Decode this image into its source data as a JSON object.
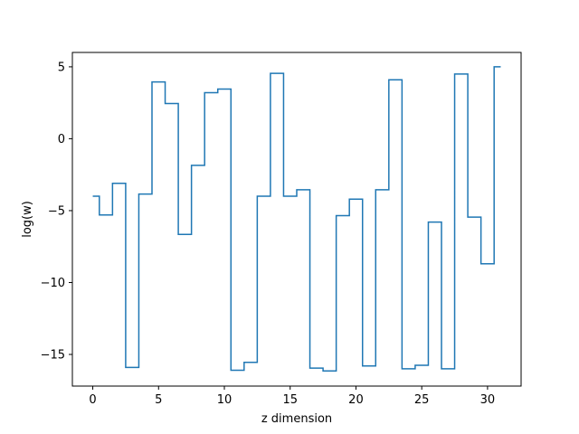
{
  "chart_data": {
    "type": "line",
    "step": "mid",
    "xlabel": "z dimension",
    "ylabel": "log(w)",
    "xlim": [
      -1.55,
      32.55
    ],
    "ylim": [
      -17.2,
      6.0
    ],
    "xticks": [
      0,
      5,
      10,
      15,
      20,
      25,
      30
    ],
    "yticks": [
      5,
      0,
      -5,
      -10,
      -15
    ],
    "ytick_labels": [
      "5",
      "0",
      "−5",
      "−10",
      "−15"
    ],
    "grid": false,
    "color": "#1f77b4",
    "series": [
      {
        "x": [
          0,
          1,
          2,
          3,
          4,
          5,
          6,
          7,
          8,
          9,
          10,
          11,
          12,
          13,
          14,
          15,
          16,
          17,
          18,
          19,
          20,
          21,
          22,
          23,
          24,
          25,
          26,
          27,
          28,
          29,
          30,
          31
        ],
        "values": [
          -4.0,
          -5.3,
          -3.1,
          -15.9,
          -3.85,
          3.95,
          2.45,
          -6.65,
          -1.85,
          3.2,
          3.45,
          -16.1,
          -15.55,
          -4.0,
          4.55,
          -4.0,
          -3.55,
          -15.95,
          -16.15,
          -5.35,
          -4.2,
          -15.8,
          -3.55,
          4.1,
          -16.0,
          -15.75,
          -5.8,
          -16.0,
          4.5,
          -5.45,
          -8.7,
          5.0
        ]
      }
    ]
  }
}
